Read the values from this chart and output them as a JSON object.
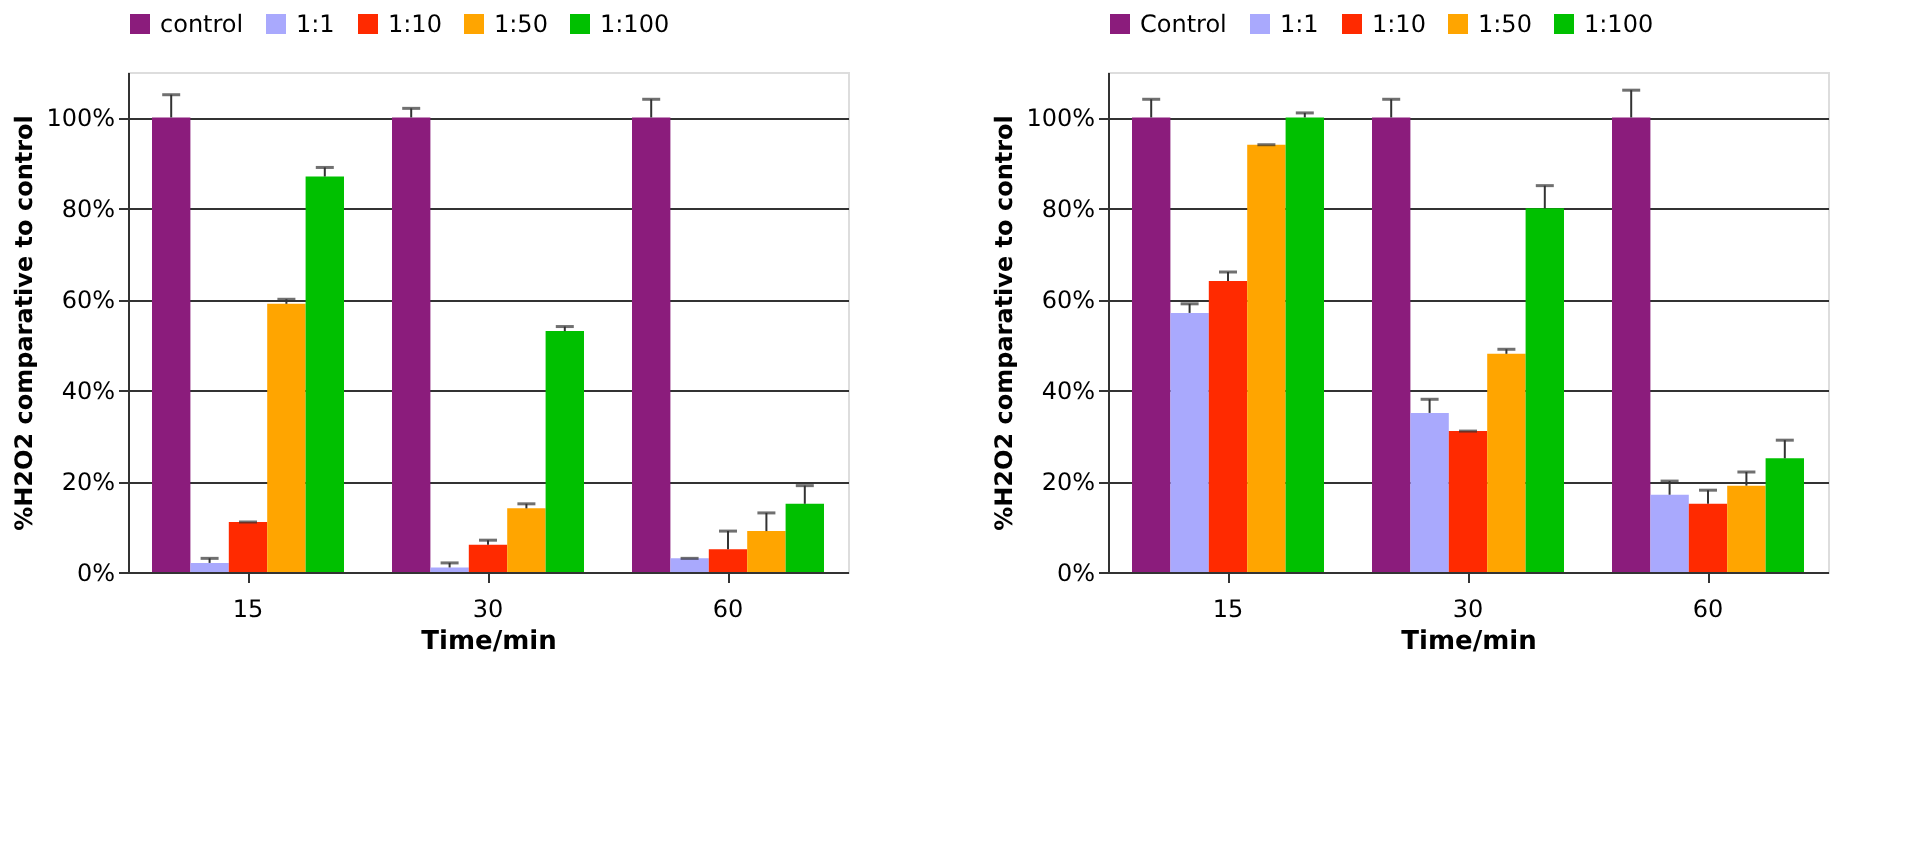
{
  "chart_data": [
    {
      "type": "bar",
      "xlabel": "Time/min",
      "ylabel": "%H2O2 comparative to control",
      "categories": [
        "15",
        "30",
        "60"
      ],
      "ylim": [
        0,
        110
      ],
      "yticks": [
        {
          "value": 0,
          "label": "0%"
        },
        {
          "value": 20,
          "label": "20%"
        },
        {
          "value": 40,
          "label": "40%"
        },
        {
          "value": 60,
          "label": "60%"
        },
        {
          "value": 80,
          "label": "80%"
        },
        {
          "value": 100,
          "label": "100%"
        }
      ],
      "grid": "y",
      "legend": "top",
      "series": [
        {
          "name": "control",
          "color": "#8b1c7c",
          "values": [
            100,
            100,
            100
          ],
          "errors": [
            [
              100,
              105
            ],
            [
              100,
              102
            ],
            [
              100,
              104
            ]
          ]
        },
        {
          "name": "1:1",
          "color": "#a9a9fd",
          "values": [
            2,
            1,
            3
          ],
          "errors": [
            [
              2,
              3
            ],
            [
              1,
              2
            ],
            [
              3,
              3
            ]
          ]
        },
        {
          "name": "1:10",
          "color": "#ff2a00",
          "values": [
            11,
            6,
            5
          ],
          "errors": [
            [
              11,
              11
            ],
            [
              6,
              7
            ],
            [
              5,
              9
            ]
          ]
        },
        {
          "name": "1:50",
          "color": "#ffa500",
          "values": [
            59,
            14,
            9
          ],
          "errors": [
            [
              59,
              60
            ],
            [
              14,
              15
            ],
            [
              9,
              13
            ]
          ]
        },
        {
          "name": "1:100",
          "color": "#00c000",
          "values": [
            87,
            53,
            15
          ],
          "errors": [
            [
              87,
              89
            ],
            [
              53,
              54
            ],
            [
              15,
              19
            ]
          ]
        }
      ]
    },
    {
      "type": "bar",
      "xlabel": "Time/min",
      "ylabel": "%H2O2 comparative to control",
      "categories": [
        "15",
        "30",
        "60"
      ],
      "ylim": [
        0,
        110
      ],
      "yticks": [
        {
          "value": 0,
          "label": "0%"
        },
        {
          "value": 20,
          "label": "20%"
        },
        {
          "value": 40,
          "label": "40%"
        },
        {
          "value": 60,
          "label": "60%"
        },
        {
          "value": 80,
          "label": "80%"
        },
        {
          "value": 100,
          "label": "100%"
        }
      ],
      "grid": "y",
      "legend": "top",
      "series": [
        {
          "name": "Control",
          "color": "#8b1c7c",
          "values": [
            100,
            100,
            100
          ],
          "errors": [
            [
              100,
              104
            ],
            [
              100,
              104
            ],
            [
              100,
              106
            ]
          ]
        },
        {
          "name": "1:1",
          "color": "#a9a9fd",
          "values": [
            57,
            35,
            17
          ],
          "errors": [
            [
              57,
              59
            ],
            [
              35,
              38
            ],
            [
              17,
              20
            ]
          ]
        },
        {
          "name": "1:10",
          "color": "#ff2a00",
          "values": [
            64,
            31,
            15
          ],
          "errors": [
            [
              64,
              66
            ],
            [
              31,
              31
            ],
            [
              15,
              18
            ]
          ]
        },
        {
          "name": "1:50",
          "color": "#ffa500",
          "values": [
            94,
            48,
            19
          ],
          "errors": [
            [
              94,
              94
            ],
            [
              48,
              49
            ],
            [
              19,
              22
            ]
          ]
        },
        {
          "name": "1:100",
          "color": "#00c000",
          "values": [
            100,
            80,
            25
          ],
          "errors": [
            [
              100,
              101
            ],
            [
              80,
              85
            ],
            [
              25,
              29
            ]
          ]
        }
      ]
    }
  ]
}
